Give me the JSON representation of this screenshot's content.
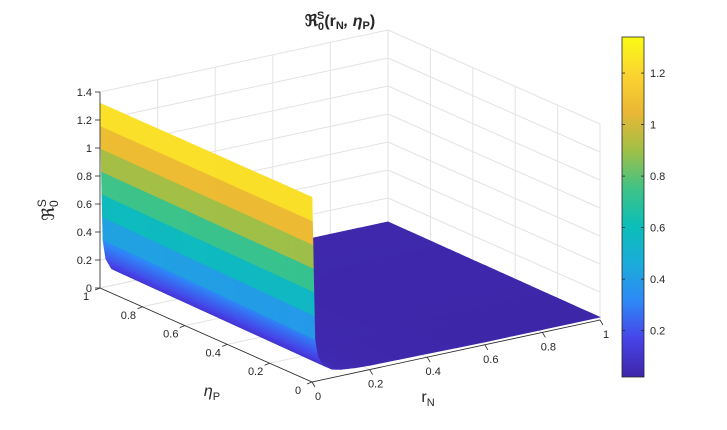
{
  "chart_data": {
    "type": "surface",
    "title": "ℜ",
    "title_sub": "0",
    "title_sup": "S",
    "title_args": "(r",
    "title_arg1_sub": "N",
    "title_mid": ",  η",
    "title_arg2_sub": "P",
    "title_close": ")",
    "xlabel": "r",
    "xlabel_sub": "N",
    "ylabel": "η",
    "ylabel_sub": "P",
    "zlabel": "ℜ",
    "zlabel_sub": "0",
    "zlabel_sup": "S",
    "xlim": [
      0,
      1
    ],
    "ylim": [
      0,
      1
    ],
    "zlim": [
      0,
      1.4
    ],
    "x_ticks": [
      "0",
      "0.2",
      "0.4",
      "0.6",
      "0.8",
      "1"
    ],
    "y_ticks": [
      "0",
      "0.2",
      "0.4",
      "0.6",
      "0.8",
      "1"
    ],
    "z_ticks": [
      "0",
      "0.2",
      "0.4",
      "0.6",
      "0.8",
      "1",
      "1.2",
      "1.4"
    ],
    "colorbar_ticks": [
      "0.2",
      "0.4",
      "0.6",
      "0.8",
      "1",
      "1.2"
    ],
    "colorbar_range": [
      0.02,
      1.34
    ],
    "colormap": "parula",
    "grid": true,
    "surface": {
      "description_free_profile": true,
      "r_N": [
        0,
        0.01,
        0.02,
        0.04,
        0.07,
        0.1,
        0.15,
        0.2,
        0.4,
        0.6,
        0.8,
        1
      ],
      "edge_value_at_eta_P_1": [
        1.32,
        0.34,
        0.2,
        0.12,
        0.08,
        0.06,
        0.05,
        0.04,
        0.03,
        0.03,
        0.03,
        0.03
      ],
      "edge_value_at_eta_P_0": [
        1.32,
        0.3,
        0.17,
        0.1,
        0.06,
        0.045,
        0.035,
        0.03,
        0.025,
        0.02,
        0.02,
        0.02
      ]
    },
    "colors": {
      "axis": "#262626",
      "grid": "#e3e3e3",
      "colormap_stops": [
        "#3e26a8",
        "#4743e8",
        "#2e87f7",
        "#1bacd9",
        "#0bbeb8",
        "#40c386",
        "#a0bf47",
        "#eab734",
        "#fbd430",
        "#f9fb15"
      ]
    }
  }
}
